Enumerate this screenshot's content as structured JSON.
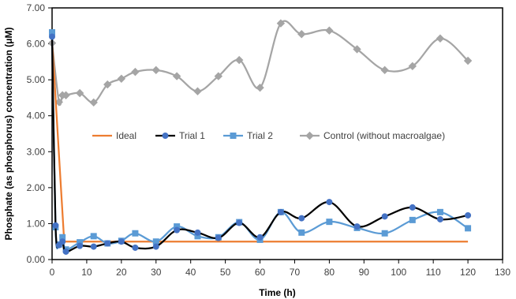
{
  "chart_data": {
    "type": "line",
    "title": "",
    "xlabel": "Time (h)",
    "ylabel": "Phosphate (as phosphorus) concentration (μM)",
    "xlim": [
      0,
      130
    ],
    "ylim": [
      0,
      7
    ],
    "x_ticks": [
      "0",
      "10",
      "20",
      "30",
      "40",
      "50",
      "60",
      "70",
      "80",
      "90",
      "100",
      "110",
      "120",
      "130"
    ],
    "y_ticks": [
      "0.00",
      "1.00",
      "2.00",
      "3.00",
      "4.00",
      "5.00",
      "6.00",
      "7.00"
    ],
    "grid": false,
    "smooth": true,
    "legend_position": "center-right",
    "series": [
      {
        "name": "Ideal",
        "color": "#ED7D31",
        "marker": "none",
        "smooth": false,
        "x": [
          0,
          3.5,
          120
        ],
        "y": [
          6.1,
          0.5,
          0.5
        ]
      },
      {
        "name": "Trial 1",
        "color": "#000000",
        "marker_color": "#4472C4",
        "marker": "circle",
        "smooth": true,
        "x": [
          0,
          1,
          2,
          3,
          4,
          8,
          12,
          16,
          20,
          24,
          30,
          36,
          42,
          48,
          54,
          60,
          66,
          72,
          80,
          88,
          96,
          104,
          112,
          120
        ],
        "y": [
          6.2,
          0.95,
          0.4,
          0.5,
          0.22,
          0.38,
          0.36,
          0.45,
          0.5,
          0.33,
          0.36,
          0.82,
          0.75,
          0.6,
          1.02,
          0.62,
          1.32,
          1.15,
          1.6,
          0.92,
          1.2,
          1.45,
          1.12,
          1.23
        ]
      },
      {
        "name": "Trial 2",
        "color": "#5B9BD5",
        "marker": "square",
        "smooth": true,
        "x": [
          0,
          1,
          2,
          3,
          4,
          8,
          12,
          16,
          20,
          24,
          30,
          36,
          42,
          48,
          54,
          60,
          66,
          72,
          80,
          88,
          96,
          104,
          112,
          120
        ],
        "y": [
          6.32,
          0.9,
          0.42,
          0.62,
          0.28,
          0.48,
          0.65,
          0.45,
          0.52,
          0.73,
          0.5,
          0.92,
          0.65,
          0.62,
          1.04,
          0.55,
          1.32,
          0.75,
          1.05,
          0.88,
          0.73,
          1.1,
          1.32,
          0.87
        ]
      },
      {
        "name": "Control (without macroalgae)",
        "color": "#A5A5A5",
        "marker": "diamond",
        "smooth": true,
        "x": [
          0,
          2,
          3,
          4,
          8,
          12,
          16,
          20,
          24,
          30,
          36,
          42,
          48,
          54,
          60,
          66,
          72,
          80,
          88,
          96,
          104,
          112,
          120
        ],
        "y": [
          6.02,
          4.38,
          4.57,
          4.57,
          4.63,
          4.37,
          4.87,
          5.03,
          5.22,
          5.27,
          5.1,
          4.68,
          5.1,
          5.55,
          4.78,
          6.57,
          6.27,
          6.37,
          5.85,
          5.27,
          5.38,
          6.15,
          5.53
        ]
      }
    ]
  }
}
